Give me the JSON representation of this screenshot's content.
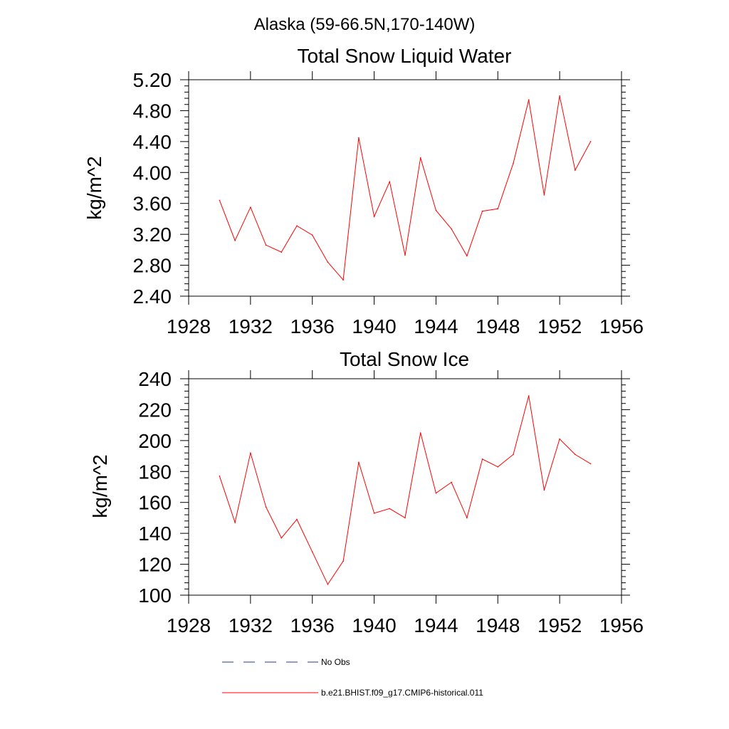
{
  "figure": {
    "suptitle": "Alaska (59-66.5N,170-140W)"
  },
  "chart_data": [
    {
      "type": "line",
      "title": "Total Snow Liquid Water",
      "ylabel": "kg/m^2",
      "xlabel": "",
      "xlim": [
        1928,
        1956
      ],
      "ylim": [
        2.4,
        5.2
      ],
      "x_ticks": [
        "1928",
        "1932",
        "1936",
        "1940",
        "1944",
        "1948",
        "1952",
        "1956"
      ],
      "y_ticks": [
        "2.40",
        "2.80",
        "3.20",
        "3.60",
        "4.00",
        "4.40",
        "4.80",
        "5.20"
      ],
      "x": [
        1930,
        1931,
        1932,
        1933,
        1934,
        1935,
        1936,
        1937,
        1938,
        1939,
        1940,
        1941,
        1942,
        1943,
        1944,
        1945,
        1946,
        1947,
        1948,
        1949,
        1950,
        1951,
        1952,
        1953,
        1954
      ],
      "series": [
        {
          "name": "b.e21.BHIST.f09_g17.CMIP6-historical.011",
          "color": "#ff0000",
          "values": [
            3.64,
            3.12,
            3.55,
            3.06,
            2.97,
            3.31,
            3.19,
            2.84,
            2.61,
            4.45,
            3.43,
            3.88,
            2.93,
            4.19,
            3.51,
            3.27,
            2.92,
            3.5,
            3.53,
            4.12,
            4.94,
            3.71,
            4.99,
            4.03,
            4.4
          ]
        }
      ],
      "grid": false
    },
    {
      "type": "line",
      "title": "Total Snow Ice",
      "ylabel": "kg/m^2",
      "xlabel": "",
      "xlim": [
        1928,
        1956
      ],
      "ylim": [
        100,
        240
      ],
      "x_ticks": [
        "1928",
        "1932",
        "1936",
        "1940",
        "1944",
        "1948",
        "1952",
        "1956"
      ],
      "y_ticks": [
        "100",
        "120",
        "140",
        "160",
        "180",
        "200",
        "220",
        "240"
      ],
      "x": [
        1930,
        1931,
        1932,
        1933,
        1934,
        1935,
        1936,
        1937,
        1938,
        1939,
        1940,
        1941,
        1942,
        1943,
        1944,
        1945,
        1946,
        1947,
        1948,
        1949,
        1950,
        1951,
        1952,
        1953,
        1954
      ],
      "series": [
        {
          "name": "b.e21.BHIST.f09_g17.CMIP6-historical.011",
          "color": "#ff0000",
          "values": [
            177,
            147,
            192,
            157,
            137,
            149,
            128,
            107,
            122,
            186,
            153,
            156,
            150,
            205,
            166,
            173,
            150,
            188,
            183,
            191,
            229,
            168,
            201,
            191,
            185
          ]
        }
      ],
      "grid": false
    }
  ],
  "legend": {
    "items": [
      {
        "label": "No Obs",
        "color": "#2a3a8a",
        "style": "dashed"
      },
      {
        "label": "b.e21.BHIST.f09_g17.CMIP6-historical.011",
        "color": "#ff0000",
        "style": "solid"
      }
    ]
  }
}
